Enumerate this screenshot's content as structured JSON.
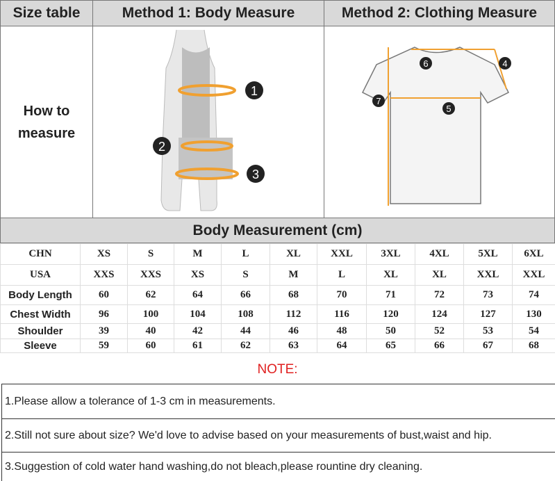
{
  "header": {
    "col1": "Size table",
    "col2": "Method 1: Body  Measure",
    "col3": "Method 2: Clothing Measure"
  },
  "how_to_measure": "How to\nmeasure",
  "method1_markers": [
    "1",
    "2",
    "3"
  ],
  "method2_markers": [
    "4",
    "5",
    "6",
    "7"
  ],
  "accent_color": "#f0a030",
  "section_title": "Body Measurement (cm)",
  "table": {
    "rows": [
      {
        "label": "CHN",
        "values": [
          "XS",
          "S",
          "M",
          "L",
          "XL",
          "XXL",
          "3XL",
          "4XL",
          "5XL",
          "6XL"
        ]
      },
      {
        "label": "USA",
        "values": [
          "XXS",
          "XXS",
          "XS",
          "S",
          "M",
          "L",
          "XL",
          "XL",
          "XXL",
          "XXL"
        ]
      },
      {
        "label": "Body Length",
        "values": [
          "60",
          "62",
          "64",
          "66",
          "68",
          "70",
          "71",
          "72",
          "73",
          "74"
        ]
      },
      {
        "label": "Chest Width",
        "values": [
          "96",
          "100",
          "104",
          "108",
          "112",
          "116",
          "120",
          "124",
          "127",
          "130"
        ]
      },
      {
        "label": "Shoulder",
        "values": [
          "39",
          "40",
          "42",
          "44",
          "46",
          "48",
          "50",
          "52",
          "53",
          "54"
        ]
      },
      {
        "label": "Sleeve",
        "values": [
          "59",
          "60",
          "61",
          "62",
          "63",
          "64",
          "65",
          "66",
          "67",
          "68"
        ]
      }
    ]
  },
  "note_title": "NOTE:",
  "notes": [
    "1.Please allow a tolerance of 1-3 cm in measurements.",
    "2.Still not sure about size? We'd love to advise based on your measurements of bust,waist and hip.",
    "3.Suggestion of cold water hand washing,do not bleach,please rountine dry cleaning."
  ]
}
